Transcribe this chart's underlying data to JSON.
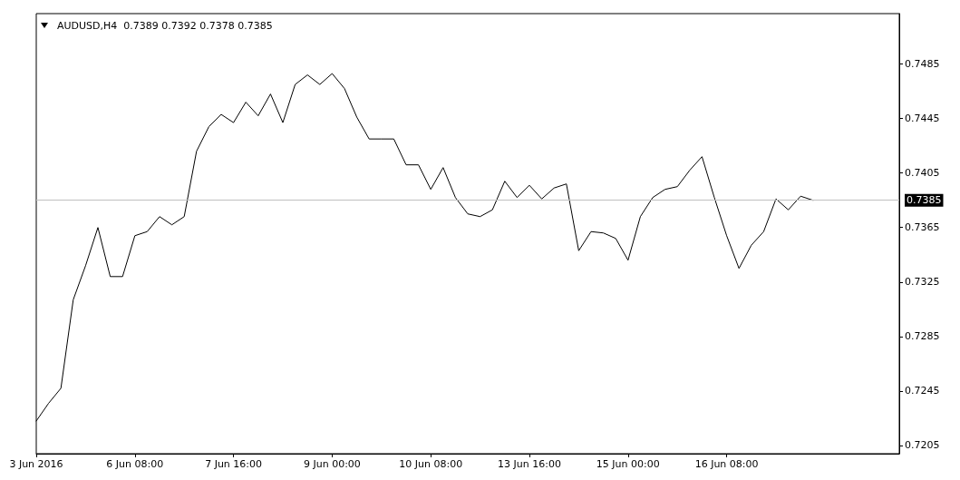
{
  "chart_data": {
    "type": "line",
    "title": "AUDUSD,H4  0.7389 0.7392 0.7378 0.7385",
    "categories": [
      "3 Jun 2016",
      null,
      null,
      null,
      null,
      null,
      null,
      null,
      "6 Jun 08:00",
      null,
      null,
      null,
      null,
      null,
      null,
      null,
      "7 Jun 16:00",
      null,
      null,
      null,
      null,
      null,
      null,
      null,
      "9 Jun 00:00",
      null,
      null,
      null,
      null,
      null,
      null,
      null,
      "10 Jun 08:00",
      null,
      null,
      null,
      null,
      null,
      null,
      null,
      "13 Jun 16:00",
      null,
      null,
      null,
      null,
      null,
      null,
      null,
      "15 Jun 00:00",
      null,
      null,
      null,
      null,
      null,
      null,
      null,
      "16 Jun 08:00",
      null,
      null,
      null,
      null,
      null,
      null,
      null,
      null,
      null,
      null,
      null,
      null,
      null,
      null
    ],
    "series": [
      {
        "color": "#000000",
        "values": [
          0.7223,
          0.7236,
          0.7247,
          0.7312,
          0.7337,
          0.7365,
          0.7329,
          0.7329,
          0.7359,
          0.7362,
          0.7373,
          0.7367,
          0.7373,
          0.7421,
          0.7439,
          0.7448,
          0.7442,
          0.7457,
          0.7447,
          0.7463,
          0.7442,
          0.747,
          0.7477,
          0.747,
          0.7478,
          0.7467,
          0.7446,
          0.743,
          0.743,
          0.743,
          0.7411,
          0.7411,
          0.7393,
          0.7409,
          0.7387,
          0.7375,
          0.7373,
          0.7378,
          0.7399,
          0.7387,
          0.7396,
          0.7386,
          0.7394,
          0.7397,
          0.7348,
          0.7362,
          0.7361,
          0.7357,
          0.7341,
          0.7373,
          0.7387,
          0.7393,
          0.7395,
          0.7407,
          0.7417,
          0.7387,
          0.7359,
          0.7335,
          0.7352,
          0.7362,
          0.7386,
          0.7378,
          0.7388,
          0.7385,
          null,
          null,
          null,
          null,
          null,
          null,
          null
        ]
      }
    ],
    "ylim": [
      0.7199,
      0.7522
    ],
    "yticks": [
      0.7205,
      0.7245,
      0.7285,
      0.7325,
      0.7365,
      0.7405,
      0.7445,
      0.7485
    ],
    "ref_lines": [
      {
        "axis": "y",
        "value": 0.7385,
        "label": "0.7385",
        "color": "#c0c0c0"
      }
    ],
    "grid": false,
    "marker": "none",
    "line_style": "solid"
  }
}
